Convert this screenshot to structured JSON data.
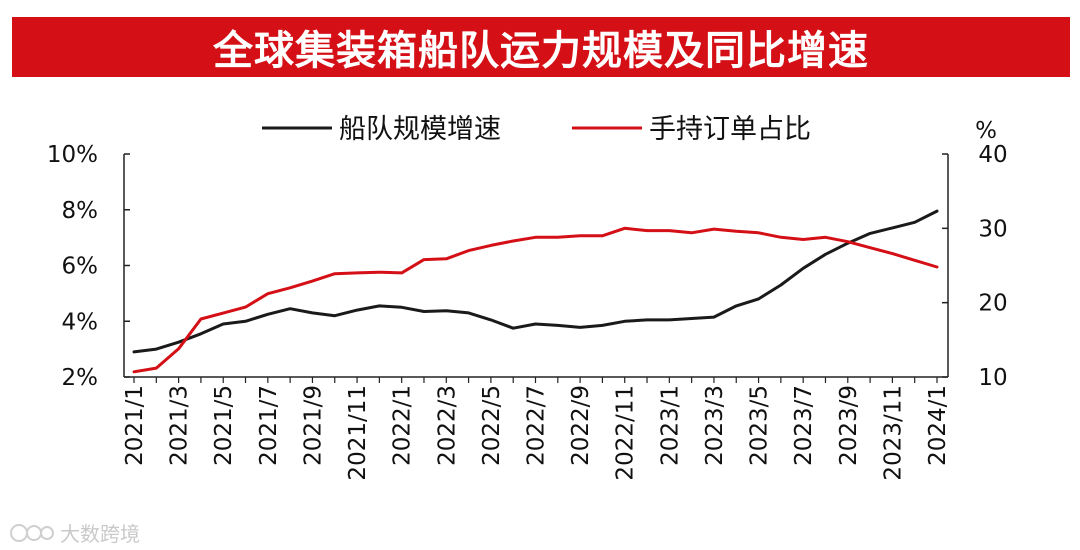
{
  "chart_data": {
    "type": "line",
    "title": "全球集装箱船队运力规模及同比增速",
    "x": [
      "2021/1",
      "2021/2",
      "2021/3",
      "2021/4",
      "2021/5",
      "2021/6",
      "2021/7",
      "2021/8",
      "2021/9",
      "2021/10",
      "2021/11",
      "2021/12",
      "2022/1",
      "2022/2",
      "2022/3",
      "2022/4",
      "2022/5",
      "2022/6",
      "2022/7",
      "2022/8",
      "2022/9",
      "2022/10",
      "2022/11",
      "2022/12",
      "2023/1",
      "2023/2",
      "2023/3",
      "2023/4",
      "2023/5",
      "2023/6",
      "2023/7",
      "2023/8",
      "2023/9",
      "2023/10",
      "2023/11",
      "2023/12",
      "2024/1"
    ],
    "x_tick_labels": [
      "2021/1",
      "2021/3",
      "2021/5",
      "2021/7",
      "2021/9",
      "2021/11",
      "2022/1",
      "2022/3",
      "2022/5",
      "2022/7",
      "2022/9",
      "2022/11",
      "2023/1",
      "2023/3",
      "2023/5",
      "2023/7",
      "2023/9",
      "2023/11",
      "2024/1"
    ],
    "left_axis": {
      "min": 2,
      "max": 10,
      "ticks": [
        2,
        4,
        6,
        8,
        10
      ],
      "tick_labels": [
        "2%",
        "4%",
        "6%",
        "8%",
        "10%"
      ]
    },
    "right_axis": {
      "min": 10,
      "max": 40,
      "ticks": [
        10,
        20,
        30,
        40
      ],
      "tick_labels": [
        "10",
        "20",
        "30",
        "40"
      ],
      "unit": "%"
    },
    "legend_position": "top",
    "grid": false,
    "series": [
      {
        "name": "船队规模增速",
        "axis": "left",
        "color": "#1a1a1a",
        "values": [
          2.9,
          3.0,
          3.25,
          3.55,
          3.9,
          4.0,
          4.25,
          4.45,
          4.3,
          4.2,
          4.4,
          4.55,
          4.5,
          4.35,
          4.38,
          4.3,
          4.05,
          3.75,
          3.9,
          3.85,
          3.78,
          3.85,
          4.0,
          4.05,
          4.05,
          4.1,
          4.15,
          4.55,
          4.8,
          5.3,
          5.9,
          6.4,
          6.8,
          7.15,
          7.35,
          7.55,
          7.95
        ]
      },
      {
        "name": "手持订单占比",
        "axis": "right",
        "color": "#d40f16",
        "values": [
          10.7,
          11.2,
          13.8,
          17.8,
          18.6,
          19.4,
          21.2,
          22.0,
          22.9,
          23.9,
          24.0,
          24.1,
          24.0,
          25.8,
          25.9,
          27.0,
          27.7,
          28.3,
          28.8,
          28.8,
          29.0,
          29.0,
          30.0,
          29.7,
          29.7,
          29.4,
          29.9,
          29.6,
          29.4,
          28.8,
          28.5,
          28.8,
          28.2,
          27.4,
          26.6,
          25.7,
          24.8
        ]
      }
    ]
  },
  "watermark": {
    "text": "大数跨境"
  }
}
